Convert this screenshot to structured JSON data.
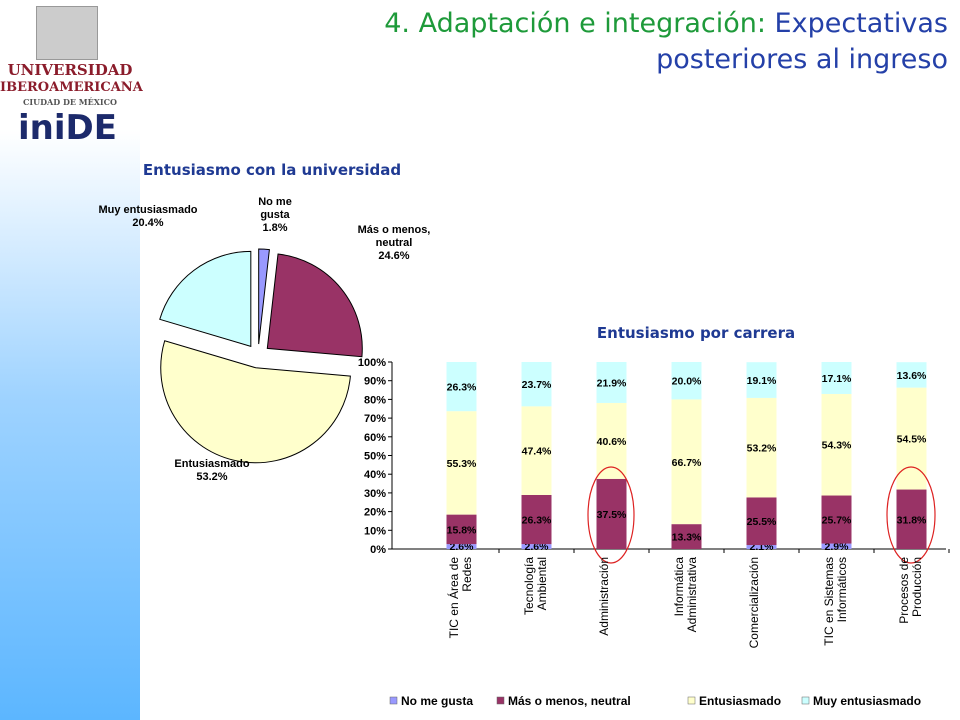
{
  "header": {
    "title_lead": "4. Adaptación e integración:",
    "title_rest": "Expectativas posteriores al ingreso"
  },
  "logo": {
    "university": "UNIVERSIDAD",
    "university2": "IBEROAMERICANA",
    "city": "CIUDAD DE MÉXICO",
    "institute": "iniDE"
  },
  "chart_data": [
    {
      "type": "pie",
      "title": "Entusiasmo con la universidad",
      "categories": [
        "No me gusta",
        "Más o menos, neutral",
        "Entusiasmado",
        "Muy entusiasmado"
      ],
      "values": [
        1.8,
        24.6,
        53.2,
        20.4
      ],
      "value_labels": [
        "1.8%",
        "24.6%",
        "53.2%",
        "20.4%"
      ],
      "colors": [
        "#9999ff",
        "#993366",
        "#ffffcc",
        "#ccffff"
      ]
    },
    {
      "type": "stacked_bar",
      "title": "Entusiasmo por carrera",
      "categories": [
        "TIC en Área de Redes",
        "Tecnología Ambiental",
        "Administración",
        "Informática Administrativa",
        "Comercialización",
        "TIC en Sistemas Informáticos",
        "Procesos de Producción"
      ],
      "series": [
        {
          "name": "No me gusta",
          "color": "#9999ff",
          "values": [
            2.6,
            2.6,
            0,
            0,
            2.1,
            2.9,
            0
          ],
          "value_labels": [
            "2.6%",
            "2.6%",
            null,
            null,
            "2.1%",
            "2.9%",
            null
          ]
        },
        {
          "name": "Más o menos, neutral",
          "color": "#993366",
          "values": [
            15.8,
            26.3,
            37.5,
            13.3,
            25.5,
            25.7,
            31.8
          ],
          "value_labels": [
            "15.8%",
            "26.3%",
            "37.5%",
            "13.3%",
            "25.5%",
            "25.7%",
            "31.8%"
          ]
        },
        {
          "name": "Entusiasmado",
          "color": "#ffffcc",
          "values": [
            55.3,
            47.4,
            40.6,
            66.7,
            53.2,
            54.3,
            54.5
          ],
          "value_labels": [
            "55.3%",
            "47.4%",
            "40.6%",
            "66.7%",
            "53.2%",
            "54.3%",
            "54.5%"
          ]
        },
        {
          "name": "Muy entusiasmado",
          "color": "#ccffff",
          "values": [
            26.3,
            23.7,
            21.9,
            20.0,
            19.1,
            17.1,
            13.6
          ],
          "value_labels": [
            "26.3%",
            "23.7%",
            "21.9%",
            "20.0%",
            "19.1%",
            "17.1%",
            "13.6%"
          ]
        }
      ],
      "ylim": [
        0,
        100
      ],
      "yticks": [
        {
          "value": 0,
          "label": "0%"
        },
        {
          "value": 10,
          "label": "10%"
        },
        {
          "value": 20,
          "label": "20%"
        },
        {
          "value": 30,
          "label": "30%"
        },
        {
          "value": 40,
          "label": "40%"
        },
        {
          "value": 50,
          "label": "50%"
        },
        {
          "value": 60,
          "label": "60%"
        },
        {
          "value": 70,
          "label": "70%"
        },
        {
          "value": 80,
          "label": "80%"
        },
        {
          "value": 90,
          "label": "90%"
        },
        {
          "value": 100,
          "label": "100%"
        }
      ],
      "legend": "bottom"
    }
  ]
}
